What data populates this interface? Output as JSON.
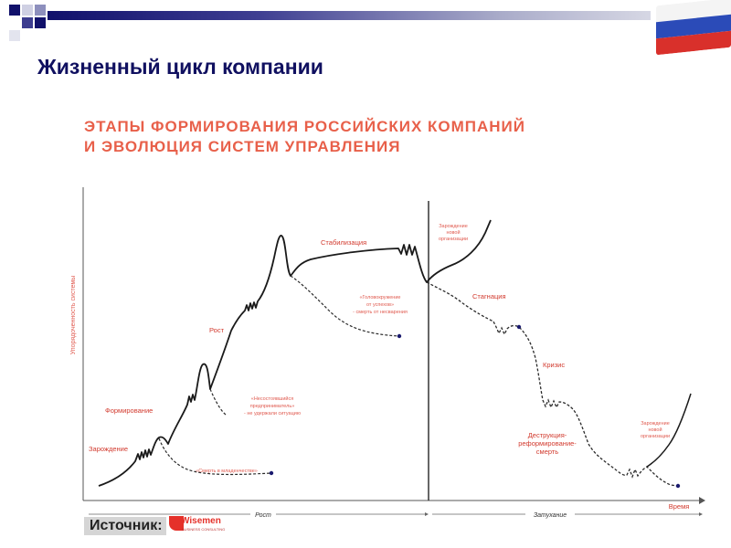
{
  "slide": {
    "title": "Жизненный цикл компании"
  },
  "figure": {
    "title_line1": "ЭТАПЫ ФОРМИРОВАНИЯ РОССИЙСКИХ КОМПАНИЙ",
    "title_line2": "И ЭВОЛЮЦИЯ СИСТЕМ УПРАВЛЕНИЯ",
    "y_axis_label": "Упорядоченность системы",
    "x_axis_label": "Время",
    "phase_left": "Рост",
    "phase_right": "Затухание",
    "stages": {
      "birth": "Зарождение",
      "formation": "Формирование",
      "growth": "Рост",
      "stabilization": "Стабилизация",
      "stagnation": "Стагнация",
      "crisis": "Кризис",
      "destruction_1": "Деструкция-",
      "destruction_2": "реформирование-",
      "destruction_3": "смерть"
    },
    "notes": {
      "infant_death": "«Смерть в младенчестве»",
      "failed_entrepreneur_1": "«Несостоявшийся",
      "failed_entrepreneur_2": "предприниматель»",
      "failed_entrepreneur_3": "- не удержали ситуацию",
      "dizziness_1": "«Головокружение",
      "dizziness_2": "от успехов»",
      "dizziness_3": "- смерть от несварения",
      "new_org_top_1": "Зарождение",
      "new_org_top_2": "новой",
      "new_org_top_3": "организации",
      "new_org_bottom_1": "Зарождение",
      "new_org_bottom_2": "новой",
      "new_org_bottom_3": "организации"
    }
  },
  "footer": {
    "source_label": "Источник:",
    "logo_text": "Wisemen",
    "logo_sub": "BUSINESS CONSULTING"
  },
  "colors": {
    "slide_title": "#101060",
    "figure_title": "#e8604a",
    "stage_label": "#d23a2e",
    "note_label": "#e05a4f",
    "curve": "#1a1a1a",
    "dot": "#1a1a6e",
    "logo": "#e5312a"
  }
}
